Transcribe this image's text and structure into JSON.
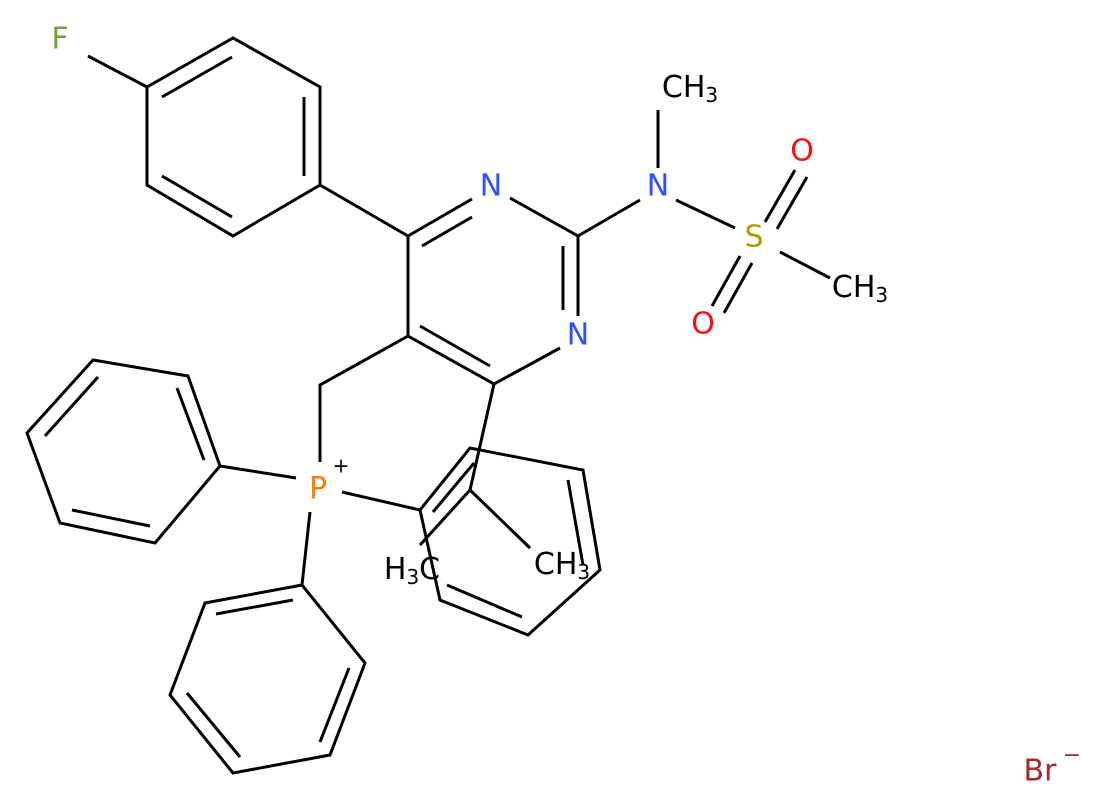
{
  "atoms": [
    {
      "label": "F"
    },
    {
      "label": "N"
    },
    {
      "label": "N"
    },
    {
      "label": "N"
    },
    {
      "label": "CH3"
    },
    {
      "label": "S"
    },
    {
      "label": "O"
    },
    {
      "label": "O"
    },
    {
      "label": "CH3"
    },
    {
      "label": "P",
      "charge": "+"
    },
    {
      "label": "H3C"
    },
    {
      "label": "CH3"
    }
  ],
  "counterion": {
    "label": "Br",
    "charge": "−"
  }
}
